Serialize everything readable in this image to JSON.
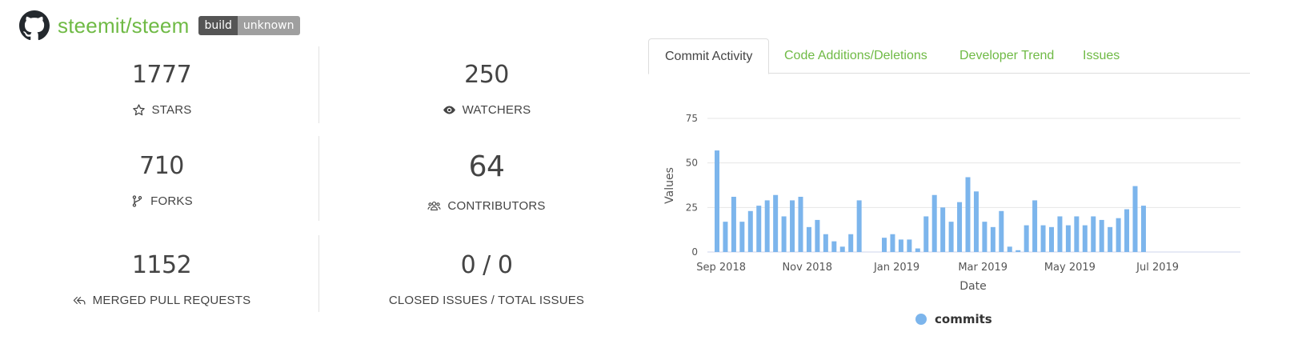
{
  "repo": {
    "name": "steemit/steem",
    "badge_left": "build",
    "badge_right": "unknown",
    "icon": "github-icon"
  },
  "stats": [
    {
      "value": "1777",
      "label": "STARS",
      "icon": "star-icon"
    },
    {
      "value": "250",
      "label": "WATCHERS",
      "icon": "eye-icon"
    },
    {
      "value": "710",
      "label": "FORKS",
      "icon": "fork-icon"
    },
    {
      "value": "64",
      "label": "CONTRIBUTORS",
      "icon": "people-icon"
    },
    {
      "value": "1152",
      "label": "MERGED PULL REQUESTS",
      "icon": "merge-icon"
    },
    {
      "value": "0 / 0",
      "label": "CLOSED ISSUES / TOTAL ISSUES",
      "icon": ""
    }
  ],
  "tabs": [
    {
      "label": "Commit Activity",
      "active": true
    },
    {
      "label": "Code Additions/Deletions",
      "active": false
    },
    {
      "label": "Developer Trend",
      "active": false
    },
    {
      "label": "Issues",
      "active": false
    }
  ],
  "colors": {
    "accent": "#6fba45",
    "bar": "#7cb5ec",
    "badge_dark": "#555555",
    "badge_light": "#9f9f9f"
  },
  "chart_data": {
    "type": "bar",
    "xlabel": "Date",
    "ylabel": "Values",
    "ylim": [
      0,
      75
    ],
    "yticks": [
      0,
      25,
      50,
      75
    ],
    "xtick_labels": [
      "Sep 2018",
      "Nov 2018",
      "Jan 2019",
      "Mar 2019",
      "May 2019",
      "Jul 2019"
    ],
    "grid": true,
    "legend_position": "bottom-center",
    "series": [
      {
        "name": "commits",
        "values": [
          57,
          17,
          31,
          17,
          23,
          26,
          29,
          32,
          20,
          29,
          31,
          14,
          18,
          10,
          6,
          3,
          10,
          29,
          0,
          0,
          8,
          10,
          7,
          7,
          2,
          20,
          32,
          25,
          17,
          28,
          42,
          34,
          17,
          14,
          23,
          3,
          1,
          15,
          29,
          15,
          14,
          20,
          15,
          20,
          15,
          20,
          18,
          14,
          19,
          24,
          37,
          26
        ]
      }
    ]
  }
}
